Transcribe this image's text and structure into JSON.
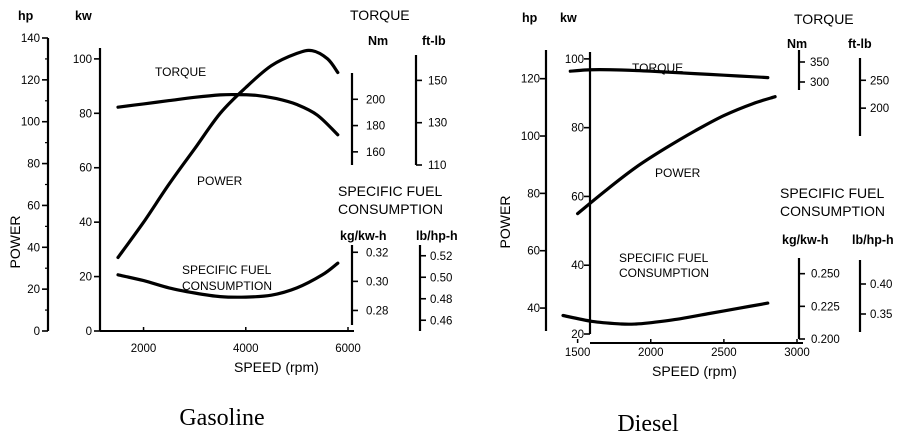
{
  "chart_data": [
    {
      "type": "line",
      "caption": "Gasoline",
      "xlabel": "SPEED (rpm)",
      "ylabel": "POWER",
      "x_ticks": [
        2000,
        4000,
        6000
      ],
      "axes": {
        "hp": {
          "label": "hp",
          "ticks": [
            0,
            20,
            40,
            60,
            80,
            100,
            120,
            140
          ],
          "range": [
            0,
            140
          ]
        },
        "kw": {
          "label": "kw",
          "ticks": [
            0,
            20,
            40,
            60,
            80,
            100
          ],
          "range": [
            0,
            104
          ]
        },
        "nm": {
          "label": "Nm",
          "ticks": [
            160,
            180,
            200
          ],
          "range": [
            150,
            220
          ]
        },
        "ftlb": {
          "label": "ft-lb",
          "ticks": [
            110,
            130,
            150
          ],
          "range": [
            110,
            162
          ]
        },
        "kgkwh": {
          "label": "kg/kw-h",
          "ticks": [
            0.28,
            0.3,
            0.32
          ],
          "range": [
            0.27,
            0.325
          ]
        },
        "lbhph": {
          "label": "lb/hp-h",
          "ticks": [
            0.46,
            0.48,
            0.5,
            0.52
          ],
          "range": [
            0.45,
            0.53
          ]
        }
      },
      "group_titles": {
        "torque": "TORQUE",
        "sfc": [
          "SPECIFIC FUEL",
          "CONSUMPTION"
        ]
      },
      "series": [
        {
          "name": "TORQUE",
          "label_lines": [
            "TORQUE"
          ],
          "unit_axis": "nm",
          "x": [
            1500,
            2000,
            2500,
            3000,
            3500,
            3800,
            4200,
            4600,
            5000,
            5400,
            5800
          ],
          "y": [
            194,
            196.5,
            199,
            201.5,
            203.3,
            203.6,
            203,
            200.5,
            196,
            188,
            173
          ]
        },
        {
          "name": "POWER",
          "label_lines": [
            "POWER"
          ],
          "unit_axis": "kw",
          "x": [
            1500,
            2000,
            2500,
            3000,
            3500,
            4000,
            4500,
            5000,
            5300,
            5600,
            5800
          ],
          "y": [
            27,
            40,
            54,
            67,
            80,
            89.5,
            97.5,
            102,
            103,
            100,
            95
          ]
        },
        {
          "name": "SPECIFIC FUEL CONSUMPTION",
          "label_lines": [
            "SPECIFIC FUEL",
            "CONSUMPTION"
          ],
          "unit_axis": "kgkwh",
          "x": [
            1500,
            2000,
            2500,
            3000,
            3500,
            4000,
            4500,
            5000,
            5500,
            5800
          ],
          "y": [
            0.3045,
            0.3005,
            0.2955,
            0.292,
            0.2895,
            0.2892,
            0.2905,
            0.2955,
            0.3045,
            0.3125
          ]
        }
      ]
    },
    {
      "type": "line",
      "caption": "Diesel",
      "xlabel": "SPEED (rpm)",
      "ylabel": "POWER",
      "x_ticks": [
        1500,
        2000,
        2500,
        3000
      ],
      "axes": {
        "hp": {
          "label": "hp",
          "ticks": [
            40,
            60,
            80,
            100,
            120
          ],
          "range": [
            32,
            130
          ]
        },
        "kw": {
          "label": "kw",
          "ticks": [
            20,
            40,
            60,
            80,
            100
          ],
          "range": [
            20,
            102
          ]
        },
        "nm": {
          "label": "Nm",
          "ticks": [
            300,
            350
          ],
          "range": [
            280,
            380
          ]
        },
        "ftlb": {
          "label": "ft-lb",
          "ticks": [
            200,
            250
          ],
          "range": [
            150,
            290
          ]
        },
        "kgkwh": {
          "label": "kg/kw-h",
          "ticks": [
            0.2,
            0.225,
            0.25
          ],
          "range": [
            0.2,
            0.262
          ]
        },
        "lbhph": {
          "label": "lb/hp-h",
          "ticks": [
            0.35,
            0.4
          ],
          "range": [
            0.32,
            0.44
          ]
        }
      },
      "group_titles": {
        "torque": "TORQUE",
        "sfc": [
          "SPECIFIC FUEL",
          "CONSUMPTION"
        ]
      },
      "series": [
        {
          "name": "TORQUE",
          "label_lines": [
            "TORQUE"
          ],
          "unit_axis": "nm",
          "x": [
            1450,
            1550,
            1650,
            1800,
            2000,
            2200,
            2400,
            2600,
            2800
          ],
          "y": [
            327,
            330,
            331,
            330,
            327,
            323,
            319,
            315,
            311
          ]
        },
        {
          "name": "POWER",
          "label_lines": [
            "POWER"
          ],
          "unit_axis": "kw",
          "x": [
            1500,
            1700,
            1900,
            2100,
            2300,
            2500,
            2700,
            2850
          ],
          "y": [
            55,
            62,
            68.5,
            74,
            79,
            83.5,
            87,
            89
          ]
        },
        {
          "name": "SPECIFIC FUEL CONSUMPTION",
          "label_lines": [
            "SPECIFIC FUEL",
            "CONSUMPTION"
          ],
          "unit_axis": "kgkwh",
          "x": [
            1400,
            1600,
            1800,
            1900,
            2000,
            2200,
            2400,
            2600,
            2800
          ],
          "y": [
            0.218,
            0.2135,
            0.2115,
            0.2115,
            0.2125,
            0.2155,
            0.2195,
            0.2235,
            0.2275
          ]
        }
      ]
    }
  ]
}
